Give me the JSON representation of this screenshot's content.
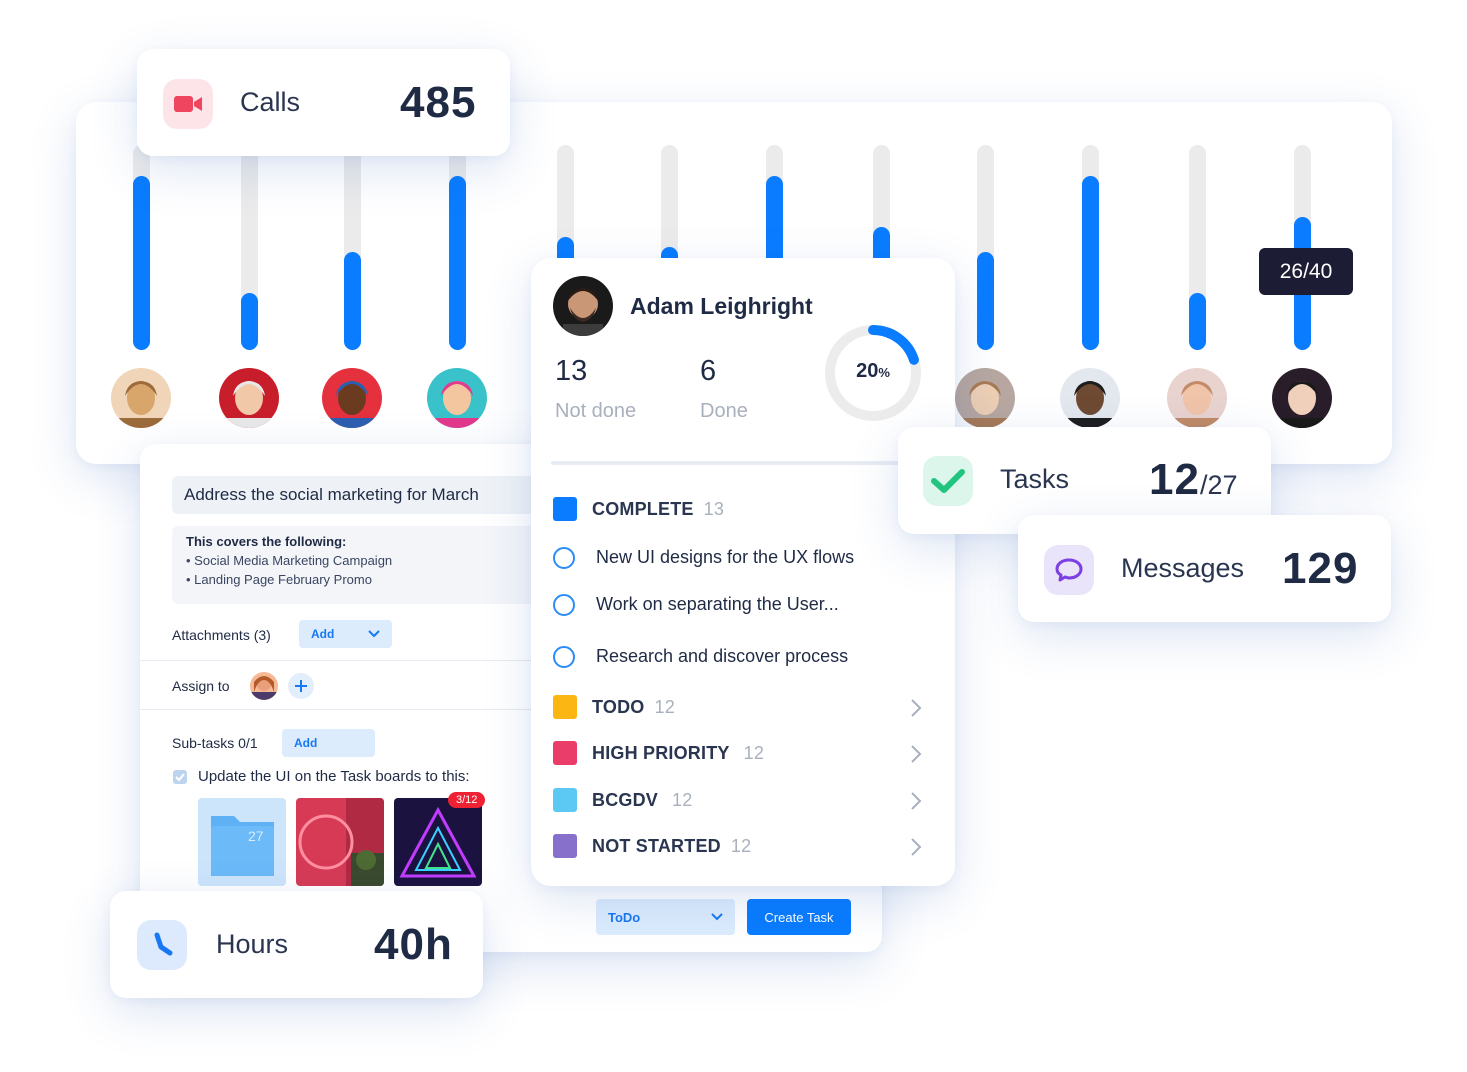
{
  "calls": {
    "label": "Calls",
    "value": "485",
    "icon": "video-camera-icon",
    "accent": "#f0455f"
  },
  "tasks": {
    "label": "Tasks",
    "value": "12",
    "total": "/27",
    "icon": "checkmark-icon",
    "accent": "#22c580"
  },
  "messages": {
    "label": "Messages",
    "value": "129",
    "icon": "chat-bubble-icon",
    "accent": "#7b3fe4"
  },
  "hours": {
    "label": "Hours",
    "value": "40h",
    "icon": "clock-icon",
    "accent": "#1878f3"
  },
  "chart": {
    "tooltip": "26/40",
    "bar_color": "#0a7cff",
    "bars": [
      {
        "person": "person-1",
        "fraction": 0.85
      },
      {
        "person": "person-2",
        "fraction": 0.28
      },
      {
        "person": "person-3",
        "fraction": 0.48
      },
      {
        "person": "person-4",
        "fraction": 0.85
      },
      {
        "person": "person-5",
        "fraction": 0.55
      },
      {
        "person": "person-6",
        "fraction": 0.5
      },
      {
        "person": "person-7",
        "fraction": 0.85
      },
      {
        "person": "person-8",
        "fraction": 0.6
      },
      {
        "person": "person-9",
        "fraction": 0.48
      },
      {
        "person": "person-10",
        "fraction": 0.85
      },
      {
        "person": "person-11",
        "fraction": 0.28
      },
      {
        "person": "person-12",
        "fraction": 0.65
      }
    ]
  },
  "profile": {
    "name": "Adam Leighright",
    "not_done_count": "13",
    "not_done_label": "Not done",
    "done_count": "6",
    "done_label": "Done",
    "progress_text": "20",
    "progress_unit": "%",
    "progress_fraction": 0.2
  },
  "groups": [
    {
      "label": "COMPLETE",
      "count": "13",
      "color": "#0a7cff"
    },
    {
      "label": "TODO",
      "count": "12",
      "color": "#fbb613"
    },
    {
      "label": "HIGH PRIORITY",
      "count": "12",
      "color": "#ea3d6a"
    },
    {
      "label": "BCGDV",
      "count": "12",
      "color": "#5cc9f5"
    },
    {
      "label": "NOT STARTED",
      "count": "12",
      "color": "#8770cc"
    }
  ],
  "complete_tasks": [
    "New UI designs for the UX flows",
    "Work on separating the User...",
    "Research and discover process"
  ],
  "task_detail": {
    "title": "Address the social marketing for March",
    "covers_heading": "This covers the following:",
    "covers_items": [
      "Social Media Marketing Campaign",
      "Landing Page February Promo"
    ],
    "attachments_label": "Attachments (3)",
    "attachments_add": "Add",
    "assign_label": "Assign to",
    "subtasks_label": "Sub-tasks 0/1",
    "subtasks_add": "Add",
    "subtask_item": "Update the UI on the Task boards to this:",
    "folder_count": "27",
    "thumb_badge": "3/12",
    "status_select": "ToDo",
    "create_button": "Create Task"
  }
}
